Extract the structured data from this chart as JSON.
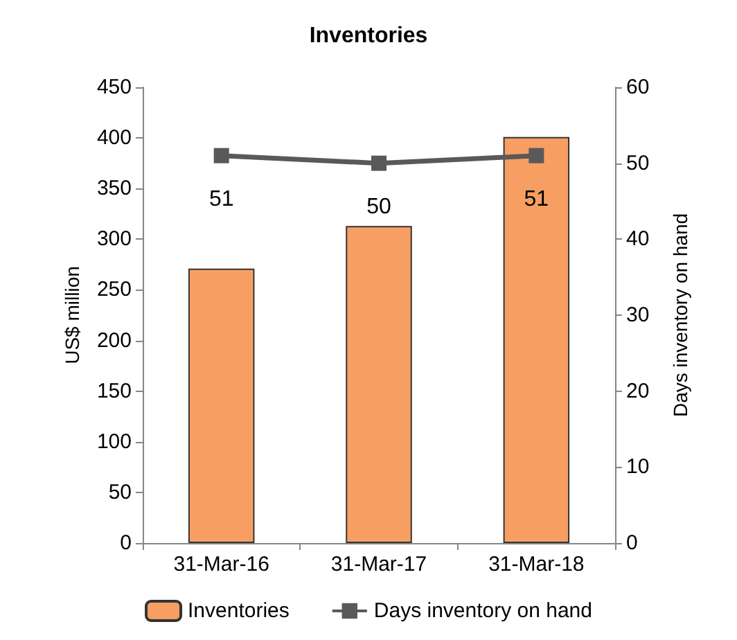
{
  "chart_data": {
    "type": "bar",
    "title": "Inventories",
    "categories": [
      "31-Mar-16",
      "31-Mar-17",
      "31-Mar-18"
    ],
    "series": [
      {
        "name": "Inventories",
        "color": "#f79f63",
        "values": [
          271,
          313,
          401
        ]
      },
      {
        "name": "Days inventory on hand",
        "type": "line",
        "axis": "y2",
        "color": "#595959",
        "values": [
          51,
          50,
          51
        ],
        "value_labels": [
          "51",
          "50",
          "51"
        ],
        "marker": "square"
      }
    ],
    "ylabel": "US$ million",
    "y2label": "Days inventory on hand",
    "ylim": [
      0,
      450
    ],
    "yticks": [
      0,
      50,
      100,
      150,
      200,
      250,
      300,
      350,
      400,
      450
    ],
    "y2lim": [
      0,
      60
    ],
    "y2ticks": [
      0,
      10,
      20,
      30,
      40,
      50,
      60
    ],
    "grid": false,
    "legend": "bottom"
  }
}
